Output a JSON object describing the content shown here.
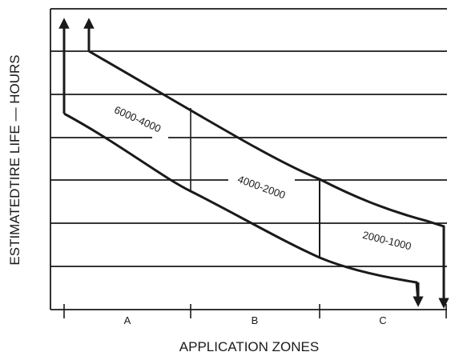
{
  "axes": {
    "y_title": "ESTIMATEDTIRE LIFE — HOURS",
    "x_title": "APPLICATION ZONES"
  },
  "zones": [
    {
      "id": "a",
      "label": "A"
    },
    {
      "id": "b",
      "label": "B"
    },
    {
      "id": "c",
      "label": "C"
    }
  ],
  "bands": [
    {
      "id": "zone-a",
      "label": "6000-4000"
    },
    {
      "id": "zone-b",
      "label": "4000-2000"
    },
    {
      "id": "zone-c",
      "label": "2000-1000"
    }
  ],
  "colors": {
    "ink": "#1a1a1a",
    "background": "#ffffff"
  }
}
